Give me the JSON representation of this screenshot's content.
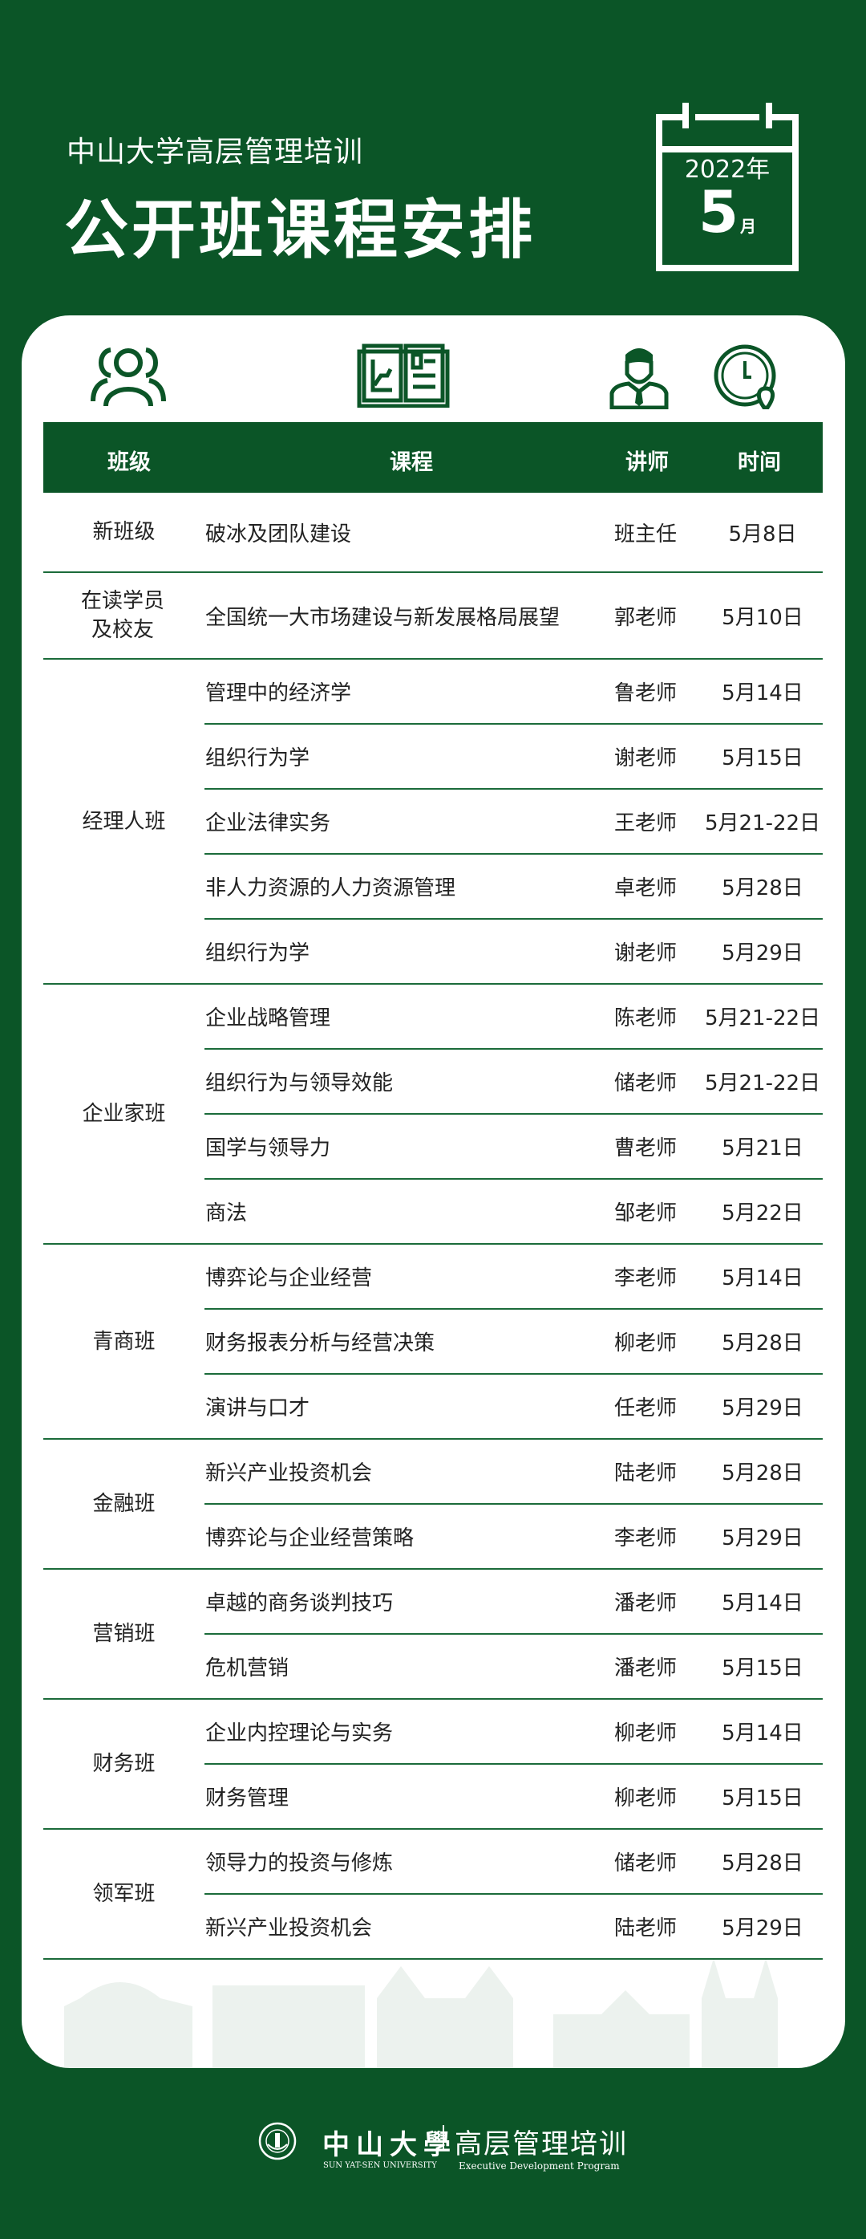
{
  "header": {
    "subtitle": "中山大学高层管理培训",
    "title": "公开班课程安排"
  },
  "calendar": {
    "year": "2022年",
    "month": "5",
    "month_unit": "月"
  },
  "icons": [
    "people-icon",
    "book-icon",
    "teacher-icon",
    "clock-icon"
  ],
  "table": {
    "headers": [
      "班级",
      "课程",
      "讲师",
      "时间"
    ],
    "groups": [
      {
        "name": "新班级",
        "rows": [
          [
            "破冰及团队建设",
            "班主任",
            "5月8日"
          ]
        ]
      },
      {
        "name": "在读学员\n及校友",
        "rows": [
          [
            "全国统一大市场建设与新发展格局展望",
            "郭老师",
            "5月10日"
          ]
        ]
      },
      {
        "name": "经理人班",
        "rows": [
          [
            "管理中的经济学",
            "鲁老师",
            "5月14日"
          ],
          [
            "组织行为学",
            "谢老师",
            "5月15日"
          ],
          [
            "企业法律实务",
            "王老师",
            "5月21-22日"
          ],
          [
            "非人力资源的人力资源管理",
            "卓老师",
            "5月28日"
          ],
          [
            "组织行为学",
            "谢老师",
            "5月29日"
          ]
        ]
      },
      {
        "name": "企业家班",
        "rows": [
          [
            "企业战略管理",
            "陈老师",
            "5月21-22日"
          ],
          [
            "组织行为与领导效能",
            "储老师",
            "5月21-22日"
          ],
          [
            "国学与领导力",
            "曹老师",
            "5月21日"
          ],
          [
            "商法",
            "邹老师",
            "5月22日"
          ]
        ]
      },
      {
        "name": "青商班",
        "rows": [
          [
            "博弈论与企业经营",
            "李老师",
            "5月14日"
          ],
          [
            "财务报表分析与经营决策",
            "柳老师",
            "5月28日"
          ],
          [
            "演讲与口才",
            "任老师",
            "5月29日"
          ]
        ]
      },
      {
        "name": "金融班",
        "rows": [
          [
            "新兴产业投资机会",
            "陆老师",
            "5月28日"
          ],
          [
            "博弈论与企业经营策略",
            "李老师",
            "5月29日"
          ]
        ]
      },
      {
        "name": "营销班",
        "rows": [
          [
            "卓越的商务谈判技巧",
            "潘老师",
            "5月14日"
          ],
          [
            "危机营销",
            "潘老师",
            "5月15日"
          ]
        ]
      },
      {
        "name": "财务班",
        "rows": [
          [
            "企业内控理论与实务",
            "柳老师",
            "5月14日"
          ],
          [
            "财务管理",
            "柳老师",
            "5月15日"
          ]
        ]
      },
      {
        "name": "领军班",
        "rows": [
          [
            "领导力的投资与修炼",
            "储老师",
            "5月28日"
          ],
          [
            "新兴产业投资机会",
            "陆老师",
            "5月29日"
          ]
        ]
      }
    ]
  },
  "footer": {
    "university_cn": "中山大學",
    "university_en": "SUN YAT-SEN UNIVERSITY",
    "program_cn": "高层管理培训",
    "program_en": "Executive Development Program"
  },
  "colors": {
    "brand_green": "#0b5527",
    "card": "#ffffff",
    "divider": "#1b6b3a"
  }
}
